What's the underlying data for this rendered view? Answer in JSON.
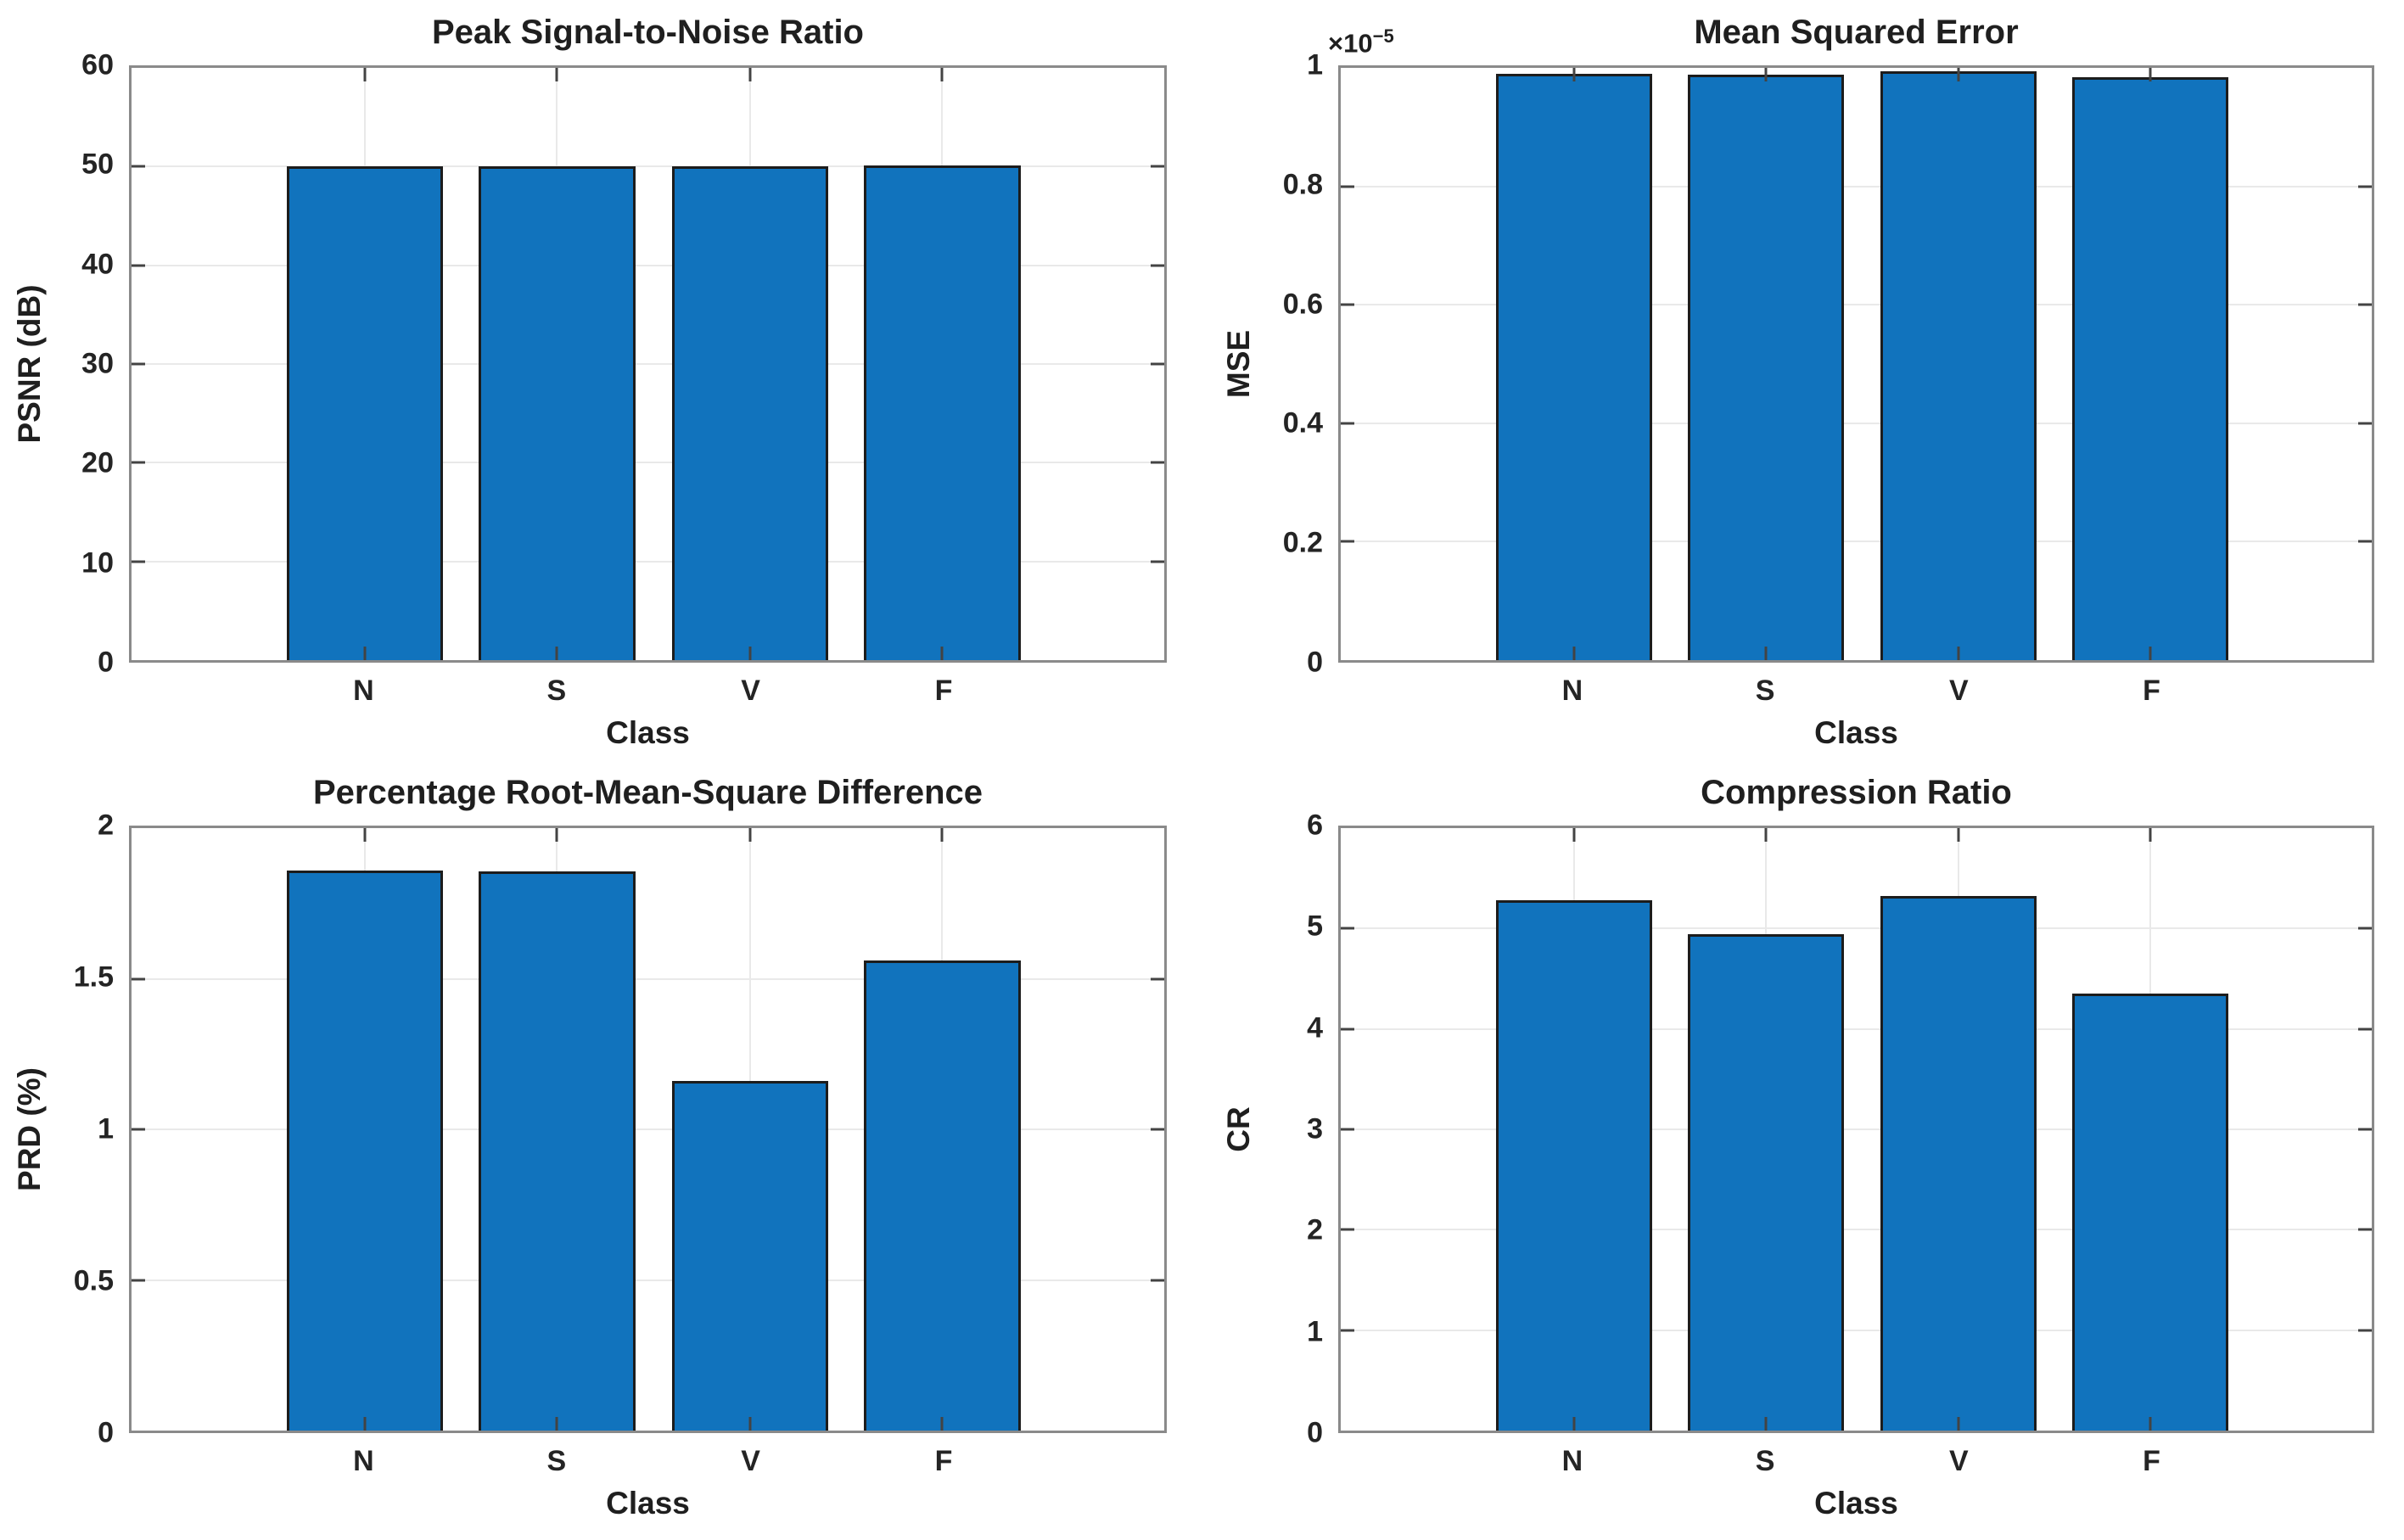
{
  "figure": {
    "background": "#ffffff",
    "bar_color": "#1173BD",
    "bar_edge_color": "#1c1c1c",
    "axis_frame_color": "#8a8a8a",
    "grid_color": "#e9e9e9",
    "text_color": "#242424"
  },
  "chart_data": [
    {
      "id": "psnr",
      "type": "bar",
      "title": "Peak Signal-to-Noise Ratio",
      "xlabel": "Class",
      "ylabel": "PSNR (dB)",
      "categories": [
        "N",
        "S",
        "V",
        "F"
      ],
      "values": [
        50.0,
        50.0,
        50.0,
        50.1
      ],
      "ylim": [
        0,
        60
      ],
      "yticks": [
        0,
        10,
        20,
        30,
        40,
        50,
        60
      ],
      "ytick_labels": [
        "0",
        "10",
        "20",
        "30",
        "40",
        "50",
        "60"
      ],
      "grid": true,
      "legend": null,
      "exponent": null
    },
    {
      "id": "mse",
      "type": "bar",
      "title": "Mean Squared Error",
      "xlabel": "Class",
      "ylabel": "MSE",
      "categories": [
        "N",
        "S",
        "V",
        "F"
      ],
      "values": [
        0.99,
        0.989,
        0.995,
        0.984
      ],
      "value_scale": "1e-5",
      "ylim": [
        0,
        1
      ],
      "yticks": [
        0,
        0.2,
        0.4,
        0.6,
        0.8,
        1
      ],
      "ytick_labels": [
        "0",
        "0.2",
        "0.4",
        "0.6",
        "0.8",
        "1"
      ],
      "grid": true,
      "legend": null,
      "exponent": {
        "prefix": "×10",
        "power": "−5"
      }
    },
    {
      "id": "prd",
      "type": "bar",
      "title": "Percentage Root-Mean-Square Difference",
      "xlabel": "Class",
      "ylabel": "PRD (%)",
      "categories": [
        "N",
        "S",
        "V",
        "F"
      ],
      "values": [
        1.86,
        1.855,
        1.16,
        1.56
      ],
      "ylim": [
        0,
        2
      ],
      "yticks": [
        0,
        0.5,
        1,
        1.5,
        2
      ],
      "ytick_labels": [
        "0",
        "0.5",
        "1",
        "1.5",
        "2"
      ],
      "grid": true,
      "legend": null,
      "exponent": null
    },
    {
      "id": "cr",
      "type": "bar",
      "title": "Compression Ratio",
      "xlabel": "Class",
      "ylabel": "CR",
      "categories": [
        "N",
        "S",
        "V",
        "F"
      ],
      "values": [
        5.28,
        4.94,
        5.32,
        4.35
      ],
      "ylim": [
        0,
        6
      ],
      "yticks": [
        0,
        1,
        2,
        3,
        4,
        5,
        6
      ],
      "ytick_labels": [
        "0",
        "1",
        "2",
        "3",
        "4",
        "5",
        "6"
      ],
      "grid": true,
      "legend": null,
      "exponent": null
    }
  ]
}
